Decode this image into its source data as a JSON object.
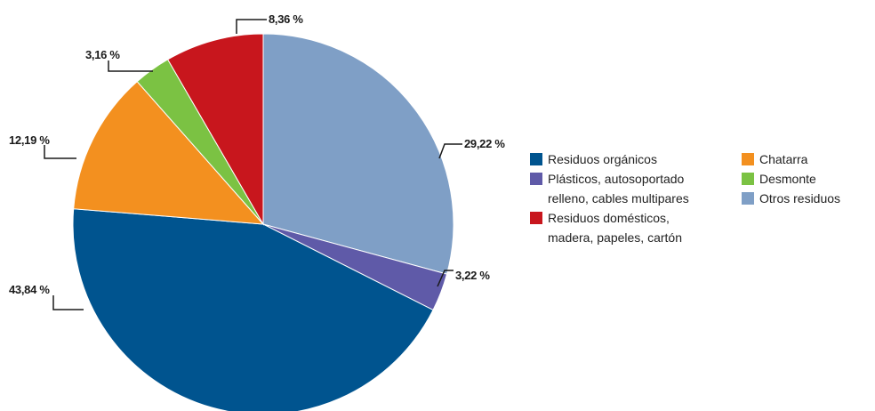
{
  "chart_data": {
    "type": "pie",
    "title": "",
    "slices": [
      {
        "name": "Otros residuos",
        "value": 29.22,
        "label": "29,22 %",
        "color": "#7f9fc6"
      },
      {
        "name": "Plásticos, autosoportado relleno, cables multipares",
        "value": 3.22,
        "label": "3,22 %",
        "color": "#5f5aa8"
      },
      {
        "name": "Residuos orgánicos",
        "value": 43.84,
        "label": "43,84 %",
        "color": "#00548f"
      },
      {
        "name": "Chatarra",
        "value": 12.19,
        "label": "12,19 %",
        "color": "#f3901f"
      },
      {
        "name": "Desmonte",
        "value": 3.16,
        "label": "3,16 %",
        "color": "#7bc243"
      },
      {
        "name": "Residuos domésticos, madera, papeles, cartón",
        "value": 8.36,
        "label": "8,36 %",
        "color": "#c8161d"
      }
    ],
    "legend": {
      "placement": "right",
      "items": [
        {
          "lines": [
            "Residuos orgánicos"
          ],
          "color": "#00548f"
        },
        {
          "lines": [
            "Plásticos, autosoportado",
            "relleno, cables multipares"
          ],
          "color": "#5f5aa8"
        },
        {
          "lines": [
            "Residuos domésticos,",
            "madera, papeles, cartón"
          ],
          "color": "#c8161d"
        },
        {
          "lines": [
            "Chatarra"
          ],
          "color": "#f3901f"
        },
        {
          "lines": [
            "Desmonte"
          ],
          "color": "#7bc243"
        },
        {
          "lines": [
            "Otros residuos"
          ],
          "color": "#7f9fc6"
        }
      ]
    }
  }
}
